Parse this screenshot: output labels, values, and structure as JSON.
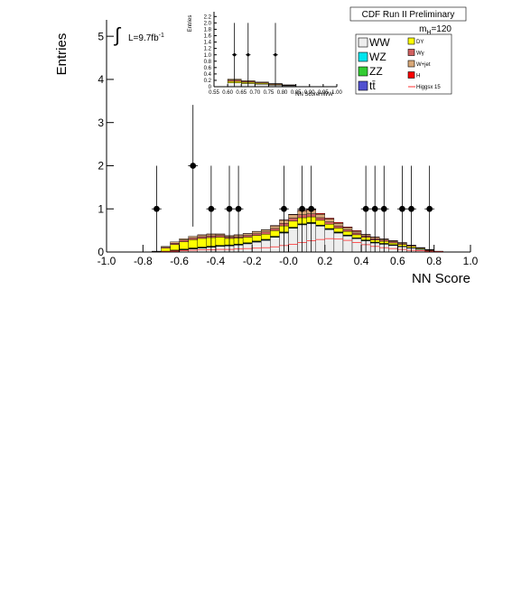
{
  "chart_data": [
    {
      "type": "histogram",
      "title": "CDF Run II Preliminary",
      "xlabel": "NN Score",
      "ylabel": "Entries",
      "luminosity": {
        "integral": "∫",
        "text": "L=9.7fb",
        "sup": "-1"
      },
      "mass_label": {
        "main": "m",
        "sub": "H",
        "rest": "=120"
      },
      "xlim": [
        -1,
        1
      ],
      "ylim": [
        0,
        5.38
      ],
      "xticks": [
        {
          "value": -1,
          "label": "-1.0"
        },
        -0.8,
        -0.6,
        -0.4,
        -0.2,
        {
          "value": 0,
          "label": "-0.0"
        },
        0.2,
        0.4,
        0.6,
        0.8,
        {
          "value": 1,
          "label": "1.0"
        }
      ],
      "yticks": [
        0,
        1,
        2,
        3,
        4,
        5
      ],
      "bins": [
        -0.75,
        -0.7,
        -0.65,
        -0.6,
        -0.55,
        -0.5,
        -0.45,
        -0.4,
        -0.35,
        -0.3,
        -0.25,
        -0.2,
        -0.15,
        -0.1,
        -0.05,
        0,
        0.05,
        0.1,
        0.15,
        0.2,
        0.25,
        0.3,
        0.35,
        0.4,
        0.45,
        0.5,
        0.55,
        0.6,
        0.65,
        0.7,
        0.75,
        0.8,
        0.85
      ],
      "series": [
        {
          "name": "WW",
          "color": "#eeeeee",
          "values": [
            0,
            0.01,
            0.03,
            0.05,
            0.07,
            0.09,
            0.11,
            0.13,
            0.14,
            0.16,
            0.19,
            0.23,
            0.27,
            0.34,
            0.44,
            0.55,
            0.63,
            0.66,
            0.6,
            0.52,
            0.44,
            0.37,
            0.31,
            0.26,
            0.21,
            0.18,
            0.15,
            0.12,
            0.09,
            0.06,
            0.03,
            0.01
          ]
        },
        {
          "name": "WZ",
          "color": "#00e5ee",
          "values": [
            0,
            0.005,
            0.005,
            0.01,
            0.01,
            0.01,
            0.01,
            0.01,
            0.01,
            0.01,
            0.01,
            0.01,
            0.01,
            0.01,
            0.01,
            0.01,
            0.01,
            0.01,
            0.01,
            0.01,
            0.01,
            0.01,
            0.01,
            0.01,
            0.01,
            0.01,
            0.01,
            0.005,
            0.005,
            0.005,
            0.005,
            0
          ]
        },
        {
          "name": "ZZ",
          "color": "#33cc33",
          "values": [
            0,
            0.005,
            0.005,
            0.005,
            0.01,
            0.01,
            0.01,
            0.01,
            0.01,
            0.01,
            0.01,
            0.01,
            0.01,
            0.01,
            0.01,
            0.01,
            0.01,
            0.01,
            0.01,
            0.01,
            0.01,
            0.01,
            0.005,
            0.005,
            0.005,
            0.005,
            0.005,
            0.005,
            0.005,
            0,
            0,
            0
          ]
        },
        {
          "name": "tt̄",
          "color": "#5050d0",
          "values": [
            0,
            0,
            0.005,
            0.005,
            0.005,
            0.005,
            0.005,
            0.005,
            0.005,
            0.005,
            0.005,
            0.005,
            0.005,
            0.005,
            0.005,
            0.005,
            0.005,
            0.005,
            0.005,
            0.005,
            0.005,
            0.005,
            0.005,
            0.005,
            0.005,
            0.005,
            0.005,
            0.005,
            0,
            0,
            0,
            0
          ]
        },
        {
          "name": "DY",
          "color": "#ffff00",
          "values": [
            0.01,
            0.07,
            0.13,
            0.17,
            0.19,
            0.2,
            0.2,
            0.19,
            0.15,
            0.14,
            0.13,
            0.13,
            0.12,
            0.13,
            0.14,
            0.14,
            0.14,
            0.13,
            0.11,
            0.1,
            0.09,
            0.08,
            0.07,
            0.06,
            0.05,
            0.05,
            0.04,
            0.04,
            0.03,
            0.02,
            0.01,
            0
          ]
        },
        {
          "name": "Wγ",
          "color": "#d06060",
          "values": [
            0.005,
            0.02,
            0.03,
            0.04,
            0.04,
            0.04,
            0.04,
            0.04,
            0.03,
            0.03,
            0.04,
            0.04,
            0.05,
            0.05,
            0.06,
            0.07,
            0.07,
            0.07,
            0.06,
            0.05,
            0.05,
            0.04,
            0.04,
            0.03,
            0.03,
            0.03,
            0.03,
            0.02,
            0.02,
            0.01,
            0.01,
            0.005
          ]
        },
        {
          "name": "W+jet",
          "color": "#d8a878",
          "values": [
            0.005,
            0.02,
            0.03,
            0.03,
            0.04,
            0.04,
            0.04,
            0.03,
            0.03,
            0.04,
            0.04,
            0.05,
            0.05,
            0.06,
            0.07,
            0.08,
            0.09,
            0.09,
            0.08,
            0.07,
            0.06,
            0.05,
            0.04,
            0.03,
            0.03,
            0.02,
            0.02,
            0.02,
            0.01,
            0.01,
            0.005,
            0.005
          ]
        },
        {
          "name": "H",
          "color": "#ff0000",
          "values": [
            0,
            0,
            0,
            0,
            0,
            0.005,
            0.005,
            0.005,
            0.005,
            0.005,
            0.005,
            0.005,
            0.005,
            0.01,
            0.01,
            0.01,
            0.015,
            0.015,
            0.02,
            0.02,
            0.02,
            0.015,
            0.015,
            0.01,
            0.01,
            0.005,
            0.005,
            0.005,
            0,
            0,
            0,
            0
          ]
        },
        {
          "name": "Higgsx 15",
          "color": "#ff3030",
          "style": "line",
          "values": [
            0,
            0.01,
            0.02,
            0.03,
            0.04,
            0.05,
            0.05,
            0.06,
            0.06,
            0.07,
            0.08,
            0.09,
            0.1,
            0.12,
            0.15,
            0.18,
            0.22,
            0.26,
            0.29,
            0.31,
            0.3,
            0.27,
            0.22,
            0.17,
            0.13,
            0.1,
            0.08,
            0.06,
            0.04,
            0.03,
            0.02,
            0.01
          ]
        }
      ],
      "points": {
        "color": "#000000",
        "x": [
          -0.725,
          -0.525,
          -0.425,
          -0.325,
          -0.275,
          -0.025,
          0.075,
          0.125,
          0.425,
          0.475,
          0.525,
          0.625,
          0.675,
          0.775
        ],
        "values": [
          1,
          2,
          1,
          1,
          1,
          1,
          1,
          1,
          1,
          1,
          1,
          1,
          1,
          1
        ],
        "errors": [
          1,
          1.41,
          1,
          1,
          1,
          1,
          1,
          1,
          1,
          1,
          1,
          1,
          1,
          1
        ]
      }
    },
    {
      "type": "histogram",
      "xlabel": "NN ScoreHWW",
      "ylabel": "Entries",
      "xlim": [
        0.55,
        1.0
      ],
      "ylim": [
        0,
        2.35
      ],
      "xticks": [
        0.55,
        {
          "value": 0.6,
          "label": "0.60"
        },
        0.65,
        {
          "value": 0.7,
          "label": "0.70"
        },
        0.75,
        {
          "value": 0.8,
          "label": "0.80"
        },
        0.85,
        {
          "value": 0.9,
          "label": "0.90"
        },
        0.95,
        {
          "value": 1.0,
          "label": "1.00"
        }
      ],
      "yticks": [
        0,
        0.2,
        0.4,
        0.6,
        0.8,
        {
          "value": 1,
          "label": "1.0"
        },
        1.2,
        1.4,
        1.6,
        1.8,
        {
          "value": 2,
          "label": "2.0"
        },
        2.2
      ],
      "bins": [
        0.6,
        0.65,
        0.7,
        0.75,
        0.8,
        0.85
      ],
      "series": [
        {
          "color": "#eeeeee",
          "values": [
            0.12,
            0.1,
            0.08,
            0.05,
            0.03
          ]
        },
        {
          "color": "#ffff00",
          "values": [
            0.05,
            0.04,
            0.03,
            0.02,
            0.01
          ]
        },
        {
          "color": "#d06060",
          "values": [
            0.04,
            0.03,
            0.02,
            0.02,
            0.01
          ]
        },
        {
          "color": "#d8a878",
          "values": [
            0.03,
            0.02,
            0.02,
            0.01,
            0.01
          ]
        }
      ],
      "points": {
        "color": "#000000",
        "x": [
          0.625,
          0.675,
          0.775
        ],
        "values": [
          1,
          1,
          1
        ],
        "errors": [
          1,
          1,
          1
        ]
      }
    }
  ]
}
